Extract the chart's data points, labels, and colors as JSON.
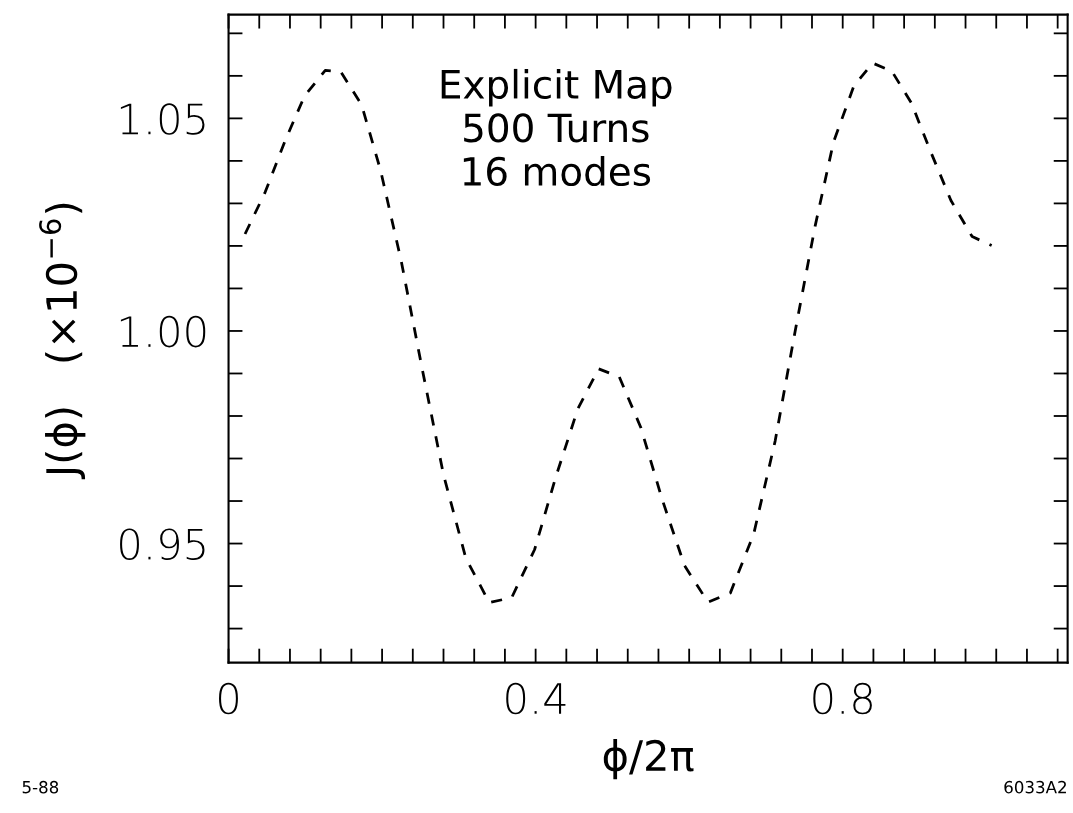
{
  "chart_data": {
    "type": "line",
    "xlabel": "ϕ/2π",
    "ylabel": "J(ϕ)   (×10$^{−6}$)",
    "annotations": [
      "Explicit Map\n500 Turns\n16 modes",
      "5-88",
      "6033A2"
    ],
    "x": [
      0.0215,
      0.0476,
      0.0736,
      0.0988,
      0.126,
      0.1464,
      0.1733,
      0.198,
      0.225,
      0.252,
      0.28,
      0.309,
      0.3397,
      0.3689,
      0.3987,
      0.426,
      0.455,
      0.482,
      0.509,
      0.537,
      0.565,
      0.594,
      0.6245,
      0.6537,
      0.684,
      0.712,
      0.738,
      0.764,
      0.788,
      0.8145,
      0.839,
      0.864,
      0.8895,
      0.9145,
      0.941,
      0.9686,
      0.994
    ],
    "series": [
      {
        "color": "#000000",
        "values": [
          1.0228,
          1.0326,
          1.0447,
          1.0552,
          1.0613,
          1.0609,
          1.0532,
          1.0378,
          1.0164,
          0.9913,
          0.9662,
          0.9466,
          0.9361,
          0.9373,
          0.9486,
          0.9655,
          0.9817,
          0.9911,
          0.9892,
          0.9773,
          0.9603,
          0.9448,
          0.9362,
          0.9384,
          0.9522,
          0.9741,
          0.9999,
          1.0246,
          1.0444,
          1.0576,
          1.063,
          1.0611,
          1.0536,
          1.0422,
          1.0307,
          1.0222,
          1.0201
        ]
      }
    ],
    "line_style": "dashed",
    "marker": "none",
    "grid": false,
    "xlim": [
      0,
      1.093
    ],
    "ylim": [
      0.922,
      1.0744
    ],
    "xticks": [
      0,
      {
        "value": 0.04,
        "label": null
      },
      {
        "value": 0.08,
        "label": null
      },
      {
        "value": 0.12,
        "label": null
      },
      {
        "value": 0.16,
        "label": null
      },
      {
        "value": 0.2,
        "label": null
      },
      {
        "value": 0.24,
        "label": null
      },
      {
        "value": 0.28,
        "label": null
      },
      {
        "value": 0.32,
        "label": null
      },
      {
        "value": 0.36,
        "label": null
      },
      0.4,
      {
        "value": 0.44,
        "label": null
      },
      {
        "value": 0.48,
        "label": null
      },
      {
        "value": 0.52,
        "label": null
      },
      {
        "value": 0.56,
        "label": null
      },
      {
        "value": 0.6,
        "label": null
      },
      {
        "value": 0.64,
        "label": null
      },
      {
        "value": 0.68,
        "label": null
      },
      {
        "value": 0.72,
        "label": null
      },
      {
        "value": 0.76,
        "label": null
      },
      0.8,
      {
        "value": 0.84,
        "label": null
      },
      {
        "value": 0.88,
        "label": null
      },
      {
        "value": 0.92,
        "label": null
      },
      {
        "value": 0.96,
        "label": null
      },
      {
        "value": 1.0,
        "label": null
      },
      {
        "value": 1.04,
        "label": null
      },
      {
        "value": 1.08,
        "label": null
      }
    ],
    "yticks": [
      {
        "value": 0.93,
        "label": null
      },
      {
        "value": 0.94,
        "label": null
      },
      {
        "value": 0.95,
        "label": "0.95"
      },
      {
        "value": 0.96,
        "label": null
      },
      {
        "value": 0.97,
        "label": null
      },
      {
        "value": 0.98,
        "label": null
      },
      {
        "value": 0.99,
        "label": null
      },
      {
        "value": 1.0,
        "label": "1.00"
      },
      {
        "value": 1.01,
        "label": null
      },
      {
        "value": 1.02,
        "label": null
      },
      {
        "value": 1.03,
        "label": null
      },
      {
        "value": 1.04,
        "label": null
      },
      {
        "value": 1.05,
        "label": "1.05"
      },
      {
        "value": 1.06,
        "label": null
      },
      {
        "value": 1.07,
        "label": null
      }
    ]
  }
}
